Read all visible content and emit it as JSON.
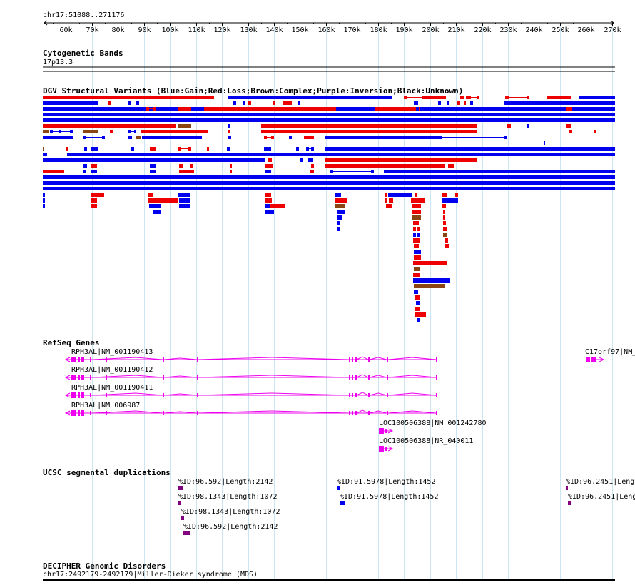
{
  "position": "chr17:51088..271176",
  "ruler": {
    "start": 51088,
    "end": 271176,
    "ticks": [
      "60k",
      "70k",
      "80k",
      "90k",
      "100k",
      "110k",
      "120k",
      "130k",
      "140k",
      "150k",
      "160k",
      "170k",
      "180k",
      "190k",
      "200k",
      "210k",
      "220k",
      "230k",
      "240k",
      "250k",
      "260k",
      "270k"
    ]
  },
  "colors": {
    "gain": "#0000ee",
    "loss": "#ee0000",
    "complex": "#8b4513",
    "gene": "#ee00ee",
    "grid": "#cce5f2",
    "segdup_purple": "#800080",
    "segdup_blue": "#0000ee"
  },
  "tracks": {
    "cytobands": {
      "title": "Cytogenetic Bands",
      "band": "17p13.3"
    },
    "dgv": {
      "title": "DGV Structural Variants (Blue:Gain;Red:Loss;Brown:Complex;Purple:Inversion;Black:Unknown)"
    },
    "refseq": {
      "title": "RefSeq Genes",
      "genes": [
        {
          "label": "RPH3AL|NM_001190413"
        },
        {
          "label": "RPH3AL|NM_001190412"
        },
        {
          "label": "RPH3AL|NM_001190411"
        },
        {
          "label": "RPH3AL|NM_006987"
        },
        {
          "label": "LOC100506388|NM_001242780"
        },
        {
          "label": "LOC100506388|NR_040011"
        },
        {
          "label": "C17orf97|NM_"
        }
      ]
    },
    "segdups": {
      "title": "UCSC segmental duplications",
      "items": [
        {
          "label": "%ID:96.592|Length:2142"
        },
        {
          "label": "%ID:98.1343|Length:1072"
        },
        {
          "label": "%ID:98.1343|Length:1072"
        },
        {
          "label": "%ID:96.592|Length:2142"
        },
        {
          "label": "%ID:91.5978|Length:1452"
        },
        {
          "label": "%ID:91.5978|Length:1452"
        },
        {
          "label": "%ID:96.2451|Leng"
        },
        {
          "label": "%ID:96.2451|Leng"
        }
      ]
    },
    "decipher": {
      "title": "DECIPHER Genomic Disorders",
      "item": "chr17:2492179-2492179|Miller-Dieker syndrome (MDS)"
    }
  }
}
